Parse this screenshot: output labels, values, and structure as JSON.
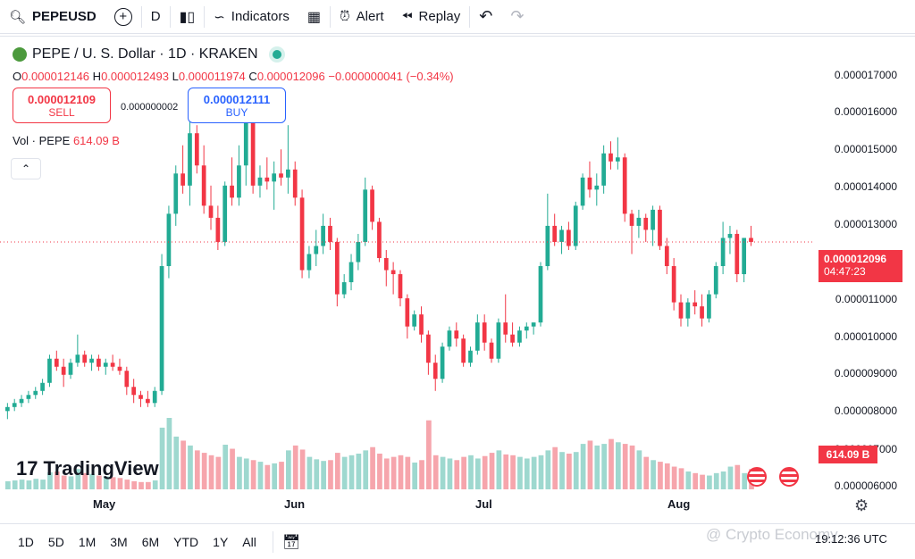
{
  "toolbar": {
    "symbol": "PEPEUSD",
    "interval": "D",
    "indicators_label": "Indicators",
    "alert_label": "Alert",
    "replay_label": "Replay"
  },
  "legend": {
    "title": "PEPE / U. S. Dollar · 1D · KRAKEN",
    "open_label": "O",
    "open": "0.000012146",
    "high_label": "H",
    "high": "0.000012493",
    "low_label": "L",
    "low": "0.000011974",
    "close_label": "C",
    "close": "0.000012096",
    "change": "−0.000000041 (−0.34%)"
  },
  "trade": {
    "sell_price": "0.000012109",
    "sell_label": "SELL",
    "spread": "0.000000002",
    "buy_price": "0.000012111",
    "buy_label": "BUY"
  },
  "volume": {
    "label": "Vol · PEPE",
    "value": "614.09 B"
  },
  "price_scale": {
    "ticks": [
      "0.000017000",
      "0.000016000",
      "0.000015000",
      "0.000014000",
      "0.000013000",
      "0.000011000",
      "0.000010000",
      "0.000009000",
      "0.000008000",
      "0.000007000",
      "0.000006000"
    ],
    "current_price": "0.000012096",
    "countdown": "04:47:23",
    "volume_tag": "614.09 B"
  },
  "x_axis": {
    "labels": [
      "May",
      "Jun",
      "Jul",
      "Aug"
    ]
  },
  "bottom_bar": {
    "ranges": [
      "1D",
      "5D",
      "1M",
      "3M",
      "6M",
      "YTD",
      "1Y",
      "All"
    ],
    "time": "19:12:36 UTC"
  },
  "branding": {
    "logo_text": "TradingView",
    "watermark": "@ Crypto Economy"
  },
  "colors": {
    "up": "#22ab94",
    "down": "#f23645",
    "up_vol": "#9ed8cf",
    "down_vol": "#f6a5ac"
  },
  "chart_data": {
    "type": "candlestick",
    "y_range": [
      6e-06,
      1.72e-05
    ],
    "candles": [
      [
        7.9e-06,
        8.1e-06,
        7.7e-06,
        8e-06
      ],
      [
        8e-06,
        8.2e-06,
        7.9e-06,
        8.1e-06
      ],
      [
        8.1e-06,
        8.3e-06,
        8e-06,
        8.2e-06
      ],
      [
        8.2e-06,
        8.4e-06,
        8.1e-06,
        8.3e-06
      ],
      [
        8.3e-06,
        8.5e-06,
        8.2e-06,
        8.4e-06
      ],
      [
        8.4e-06,
        8.7e-06,
        8.3e-06,
        8.6e-06
      ],
      [
        8.6e-06,
        9.3e-06,
        8.5e-06,
        9.2e-06
      ],
      [
        9.2e-06,
        9.4e-06,
        8.9e-06,
        9e-06
      ],
      [
        9e-06,
        9.2e-06,
        8.5e-06,
        8.8e-06
      ],
      [
        8.8e-06,
        9.2e-06,
        8.7e-06,
        9.1e-06
      ],
      [
        9.1e-06,
        9.8e-06,
        9e-06,
        9.3e-06
      ],
      [
        9.3e-06,
        9.4e-06,
        9e-06,
        9.1e-06
      ],
      [
        9.1e-06,
        9.3e-06,
        8.9e-06,
        9.2e-06
      ],
      [
        9.2e-06,
        9.3e-06,
        8.9e-06,
        9e-06
      ],
      [
        9e-06,
        9.2e-06,
        8.8e-06,
        9.1e-06
      ],
      [
        9.1e-06,
        9.3e-06,
        8.9e-06,
        9e-06
      ],
      [
        9e-06,
        9.2e-06,
        8.8e-06,
        8.9e-06
      ],
      [
        8.9e-06,
        9e-06,
        8.3e-06,
        8.5e-06
      ],
      [
        8.5e-06,
        8.7e-06,
        8.1e-06,
        8.3e-06
      ],
      [
        8.3e-06,
        8.4e-06,
        8e-06,
        8.2e-06
      ],
      [
        8.2e-06,
        8.4e-06,
        8e-06,
        8.1e-06
      ],
      [
        8.1e-06,
        8.5e-06,
        8e-06,
        8.4e-06
      ],
      [
        8.4e-06,
        1.18e-05,
        8.3e-06,
        1.15e-05
      ],
      [
        1.15e-05,
        1.3e-05,
        1.12e-05,
        1.28e-05
      ],
      [
        1.28e-05,
        1.4e-05,
        1.25e-05,
        1.38e-05
      ],
      [
        1.38e-05,
        1.45e-05,
        1.33e-05,
        1.35e-05
      ],
      [
        1.35e-05,
        1.54e-05,
        1.3e-05,
        1.48e-05
      ],
      [
        1.48e-05,
        1.5e-05,
        1.38e-05,
        1.4e-05
      ],
      [
        1.4e-05,
        1.45e-05,
        1.28e-05,
        1.3e-05
      ],
      [
        1.3e-05,
        1.35e-05,
        1.24e-05,
        1.27e-05
      ],
      [
        1.27e-05,
        1.3e-05,
        1.19e-05,
        1.21e-05
      ],
      [
        1.21e-05,
        1.36e-05,
        1.2e-05,
        1.35e-05
      ],
      [
        1.35e-05,
        1.42e-05,
        1.3e-05,
        1.32e-05
      ],
      [
        1.32e-05,
        1.45e-05,
        1.3e-05,
        1.4e-05
      ],
      [
        1.4e-05,
        1.56e-05,
        1.35e-05,
        1.55e-05
      ],
      [
        1.55e-05,
        1.56e-05,
        1.33e-05,
        1.35e-05
      ],
      [
        1.35e-05,
        1.4e-05,
        1.32e-05,
        1.37e-05
      ],
      [
        1.37e-05,
        1.42e-05,
        1.34e-05,
        1.36e-05
      ],
      [
        1.36e-05,
        1.41e-05,
        1.29e-05,
        1.38e-05
      ],
      [
        1.38e-05,
        1.44e-05,
        1.35e-05,
        1.37e-05
      ],
      [
        1.37e-05,
        1.5e-05,
        1.33e-05,
        1.39e-05
      ],
      [
        1.39e-05,
        1.41e-05,
        1.3e-05,
        1.32e-05
      ],
      [
        1.32e-05,
        1.34e-05,
        1.12e-05,
        1.14e-05
      ],
      [
        1.14e-05,
        1.2e-05,
        1.12e-05,
        1.18e-05
      ],
      [
        1.18e-05,
        1.24e-05,
        1.15e-05,
        1.2e-05
      ],
      [
        1.2e-05,
        1.28e-05,
        1.18e-05,
        1.25e-05
      ],
      [
        1.25e-05,
        1.27e-05,
        1.19e-05,
        1.21e-05
      ],
      [
        1.21e-05,
        1.22e-05,
        1.05e-05,
        1.08e-05
      ],
      [
        1.08e-05,
        1.13e-05,
        1.07e-05,
        1.11e-05
      ],
      [
        1.11e-05,
        1.18e-05,
        1.09e-05,
        1.16e-05
      ],
      [
        1.16e-05,
        1.23e-05,
        1.14e-05,
        1.21e-05
      ],
      [
        1.21e-05,
        1.37e-05,
        1.2e-05,
        1.34e-05
      ],
      [
        1.34e-05,
        1.35e-05,
        1.24e-05,
        1.26e-05
      ],
      [
        1.26e-05,
        1.27e-05,
        1.16e-05,
        1.17e-05
      ],
      [
        1.17e-05,
        1.19e-05,
        1.1e-05,
        1.14e-05
      ],
      [
        1.14e-05,
        1.16e-05,
        1.08e-05,
        1.13e-05
      ],
      [
        1.13e-05,
        1.14e-05,
        1.05e-05,
        1.07e-05
      ],
      [
        1.07e-05,
        1.08e-05,
        9.7e-06,
        1e-05
      ],
      [
        1e-05,
        1.04e-05,
        9.9e-06,
        1.03e-05
      ],
      [
        1.03e-05,
        1.05e-05,
        9.6e-06,
        9.8e-06
      ],
      [
        9.8e-06,
        9.9e-06,
        8.8e-06,
        9.1e-06
      ],
      [
        9.1e-06,
        9.3e-06,
        8.4e-06,
        8.7e-06
      ],
      [
        8.7e-06,
        9.6e-06,
        8.6e-06,
        9.5e-06
      ],
      [
        9.5e-06,
        1e-05,
        9.4e-06,
        9.9e-06
      ],
      [
        9.9e-06,
        1.01e-05,
        9.5e-06,
        9.7e-06
      ],
      [
        9.7e-06,
        9.8e-06,
        9e-06,
        9.1e-06
      ],
      [
        9.1e-06,
        9.5e-06,
        9e-06,
        9.4e-06
      ],
      [
        9.4e-06,
        1.03e-05,
        9.3e-06,
        1.01e-05
      ],
      [
        1.01e-05,
        1.03e-05,
        9.4e-06,
        9.6e-06
      ],
      [
        9.6e-06,
        9.7e-06,
        9.1e-06,
        9.2e-06
      ],
      [
        9.2e-06,
        1.02e-05,
        9.1e-06,
        1.01e-05
      ],
      [
        1.01e-05,
        1.08e-05,
        9.6e-06,
        9.8e-06
      ],
      [
        9.8e-06,
        1.01e-05,
        9.5e-06,
        9.6e-06
      ],
      [
        9.6e-06,
        1e-05,
        9.5e-06,
        9.9e-06
      ],
      [
        9.9e-06,
        1.01e-05,
        9.7e-06,
        1e-05
      ],
      [
        1e-05,
        1.01e-05,
        9.8e-06,
        1.01e-05
      ],
      [
        1.01e-05,
        1.16e-05,
        1e-05,
        1.15e-05
      ],
      [
        1.15e-05,
        1.33e-05,
        1.14e-05,
        1.25e-05
      ],
      [
        1.25e-05,
        1.28e-05,
        1.2e-05,
        1.21e-05
      ],
      [
        1.21e-05,
        1.25e-05,
        1.18e-05,
        1.24e-05
      ],
      [
        1.24e-05,
        1.26e-05,
        1.19e-05,
        1.2e-05
      ],
      [
        1.2e-05,
        1.31e-05,
        1.19e-05,
        1.3e-05
      ],
      [
        1.3e-05,
        1.38e-05,
        1.29e-05,
        1.37e-05
      ],
      [
        1.37e-05,
        1.41e-05,
        1.32e-05,
        1.34e-05
      ],
      [
        1.34e-05,
        1.38e-05,
        1.3e-05,
        1.35e-05
      ],
      [
        1.35e-05,
        1.45e-05,
        1.33e-05,
        1.43e-05
      ],
      [
        1.43e-05,
        1.46e-05,
        1.39e-05,
        1.41e-05
      ],
      [
        1.41e-05,
        1.47e-05,
        1.39e-05,
        1.42e-05
      ],
      [
        1.42e-05,
        1.43e-05,
        1.26e-05,
        1.28e-05
      ],
      [
        1.28e-05,
        1.29e-05,
        1.18e-05,
        1.25e-05
      ],
      [
        1.25e-05,
        1.29e-05,
        1.22e-05,
        1.27e-05
      ],
      [
        1.27e-05,
        1.28e-05,
        1.21e-05,
        1.24e-05
      ],
      [
        1.24e-05,
        1.3e-05,
        1.2e-05,
        1.29e-05
      ],
      [
        1.29e-05,
        1.3e-05,
        1.19e-05,
        1.2e-05
      ],
      [
        1.2e-05,
        1.22e-05,
        1.13e-05,
        1.15e-05
      ],
      [
        1.15e-05,
        1.17e-05,
        1.04e-05,
        1.06e-05
      ],
      [
        1.06e-05,
        1.08e-05,
        1e-05,
        1.02e-05
      ],
      [
        1.02e-05,
        1.07e-05,
        1e-05,
        1.06e-05
      ],
      [
        1.06e-05,
        1.09e-05,
        1.03e-05,
        1.05e-05
      ],
      [
        1.05e-05,
        1.08e-05,
        1e-05,
        1.02e-05
      ],
      [
        1.02e-05,
        1.09e-05,
        1.01e-05,
        1.08e-05
      ],
      [
        1.08e-05,
        1.16e-05,
        1.07e-05,
        1.15e-05
      ],
      [
        1.15e-05,
        1.26e-05,
        1.13e-05,
        1.22e-05
      ],
      [
        1.22e-05,
        1.25e-05,
        1.18e-05,
        1.23e-05
      ],
      [
        1.23e-05,
        1.24e-05,
        1.11e-05,
        1.13e-05
      ],
      [
        1.13e-05,
        1.22e-05,
        1.11e-05,
        1.22e-05
      ],
      [
        1.22e-05,
        1.25e-05,
        1.2e-05,
        1.21e-05
      ]
    ],
    "volumes": [
      10,
      11,
      12,
      11,
      13,
      12,
      21,
      22,
      17,
      16,
      25,
      20,
      19,
      17,
      16,
      15,
      14,
      12,
      10,
      9,
      9,
      11,
      76,
      88,
      65,
      60,
      54,
      48,
      45,
      42,
      40,
      55,
      50,
      40,
      38,
      36,
      34,
      30,
      32,
      34,
      48,
      54,
      49,
      40,
      37,
      35,
      36,
      45,
      40,
      42,
      44,
      48,
      52,
      44,
      38,
      40,
      42,
      40,
      33,
      36,
      85,
      42,
      40,
      38,
      36,
      40,
      42,
      38,
      41,
      45,
      48,
      43,
      42,
      40,
      38,
      40,
      42,
      48,
      52,
      46,
      44,
      46,
      56,
      60,
      54,
      56,
      62,
      58,
      56,
      54,
      48,
      40,
      36,
      34,
      32,
      28,
      26,
      22,
      20,
      18,
      17,
      20,
      22,
      28,
      30,
      20,
      25
    ]
  }
}
